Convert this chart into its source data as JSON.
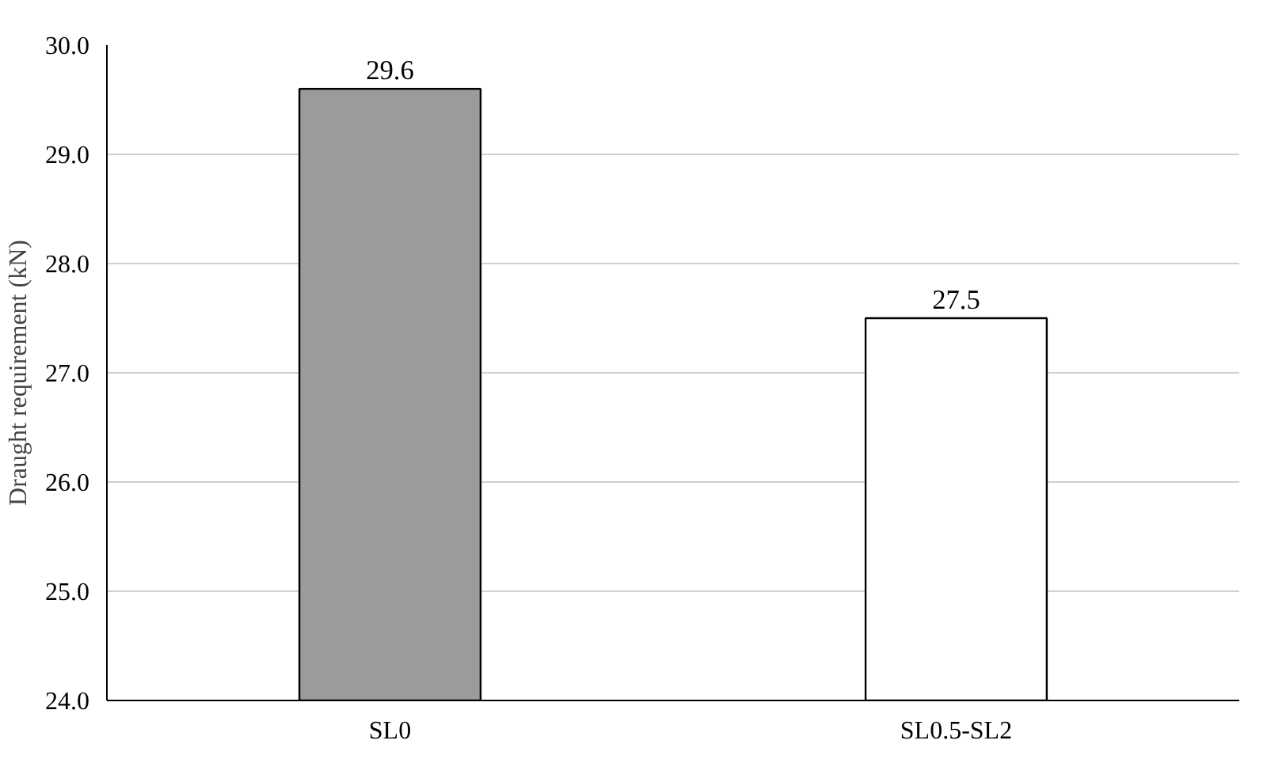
{
  "chart_data": {
    "type": "bar",
    "ylabel": "Draught requirement (kN)",
    "categories": [
      "SL0",
      "SL0.5-SL2"
    ],
    "values": [
      29.6,
      27.5
    ],
    "colors": [
      "#9a9c9c",
      "#ffffff"
    ],
    "value_labels": [
      "29.6",
      "27.5"
    ],
    "ylim": [
      24,
      30
    ],
    "yticks": [
      {
        "value": 24,
        "label": "24.0"
      },
      {
        "value": 25,
        "label": "25.0"
      },
      {
        "value": 26,
        "label": "26.0"
      },
      {
        "value": 27,
        "label": "27.0"
      },
      {
        "value": 28,
        "label": "28.0"
      },
      {
        "value": 29,
        "label": "29.0"
      },
      {
        "value": 30,
        "label": "30.0"
      }
    ],
    "grid": "y"
  }
}
